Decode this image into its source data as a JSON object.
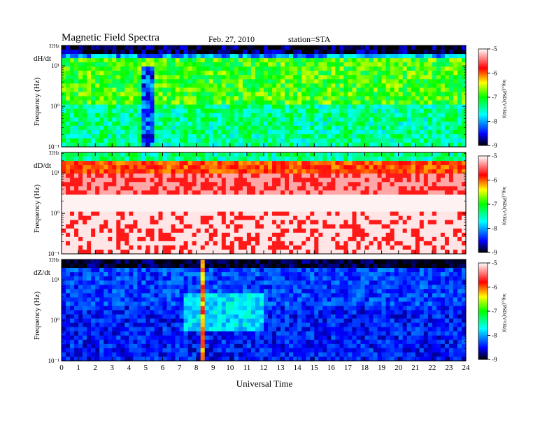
{
  "header": {
    "title": "Magnetic  Field  Spectra",
    "date": "Feb. 27, 2010",
    "station": "station=STA"
  },
  "chart_data": {
    "type": "heatmap",
    "xlabel": "Universal Time",
    "x_ticks": [
      "0",
      "1",
      "2",
      "3",
      "4",
      "5",
      "6",
      "7",
      "8",
      "9",
      "10",
      "11",
      "12",
      "13",
      "14",
      "15",
      "16",
      "17",
      "18",
      "19",
      "20",
      "21",
      "22",
      "23",
      "24"
    ],
    "xlim": [
      0,
      24
    ],
    "y_scale": "log",
    "ylim_hz": [
      0.1,
      32
    ],
    "colorbar": {
      "label": "log₁₀(PSD/(V²/Hz))",
      "range": [
        -9,
        -5
      ],
      "ticks": [
        "-5",
        "-6",
        "-7",
        "-8",
        "-9"
      ],
      "colors": [
        "#000000",
        "#0000ff",
        "#00ffff",
        "#00ff00",
        "#ffff00",
        "#ff0000",
        "#ffffff"
      ]
    },
    "panels": [
      {
        "name": "dH/dt",
        "ylabel": "Frequency  (Hz)",
        "y_tick_labels": [
          "32Hz",
          "10¹",
          "10⁰",
          "10⁻¹"
        ]
      },
      {
        "name": "dD/dt",
        "ylabel": "Frequency  (Hz)",
        "y_tick_labels": [
          "32Hz",
          "10¹",
          "10⁰",
          "10⁻¹"
        ]
      },
      {
        "name": "dZ/dt",
        "ylabel": "Frequency  (Hz)",
        "y_tick_labels": [
          "32Hz",
          "10¹",
          "10⁰",
          "10⁻¹"
        ]
      }
    ]
  }
}
